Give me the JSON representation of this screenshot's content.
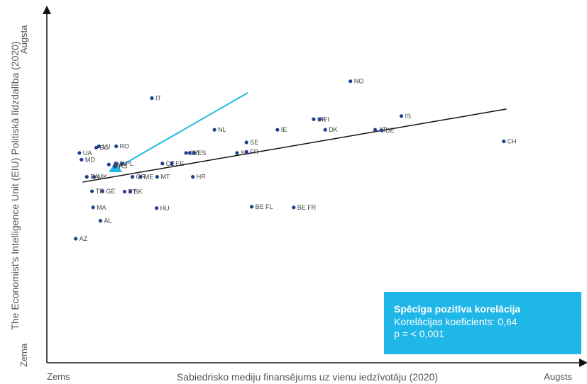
{
  "chart_data": {
    "type": "scatter",
    "title": "",
    "xlabel": "Sabiedrisko mediju finansējums uz vienu iedzīvotāju (2020)",
    "ylabel": "The Economist's Intelligence Unit (EIU) Politiskā līdzdalība (2020)",
    "x_tick_labels": [
      "Zems",
      "Augsts"
    ],
    "y_tick_labels": [
      "Zema",
      "Augsta"
    ],
    "xlim": [
      0,
      100
    ],
    "ylim": [
      0,
      100
    ],
    "grid": false,
    "point_color": "#1f3f93",
    "trend_color": "#111111",
    "arrow_color": "#22b8e6",
    "trendline": {
      "x1": 6.8,
      "y1": 51.4,
      "x2": 87.5,
      "y2": 72.2
    },
    "points": [
      {
        "label": "NO",
        "x": 57.8,
        "y": 80.1
      },
      {
        "label": "IS",
        "x": 67.5,
        "y": 70.2
      },
      {
        "label": "IE",
        "x": 43.9,
        "y": 66.3
      },
      {
        "label": "UK",
        "x": 50.8,
        "y": 69.3
      },
      {
        "label": "FI",
        "x": 52.0,
        "y": 69.3
      },
      {
        "label": "DK",
        "x": 53.0,
        "y": 66.3
      },
      {
        "label": "AT",
        "x": 62.5,
        "y": 66.3
      },
      {
        "label": "DE",
        "x": 63.8,
        "y": 66.1
      },
      {
        "label": "CH",
        "x": 87.0,
        "y": 63.0
      },
      {
        "label": "NL",
        "x": 31.9,
        "y": 66.3
      },
      {
        "label": "SE",
        "x": 38.0,
        "y": 62.7
      },
      {
        "label": "SI",
        "x": 36.2,
        "y": 59.7
      },
      {
        "label": "FR",
        "x": 38.0,
        "y": 60.0
      },
      {
        "label": "IT",
        "x": 20.0,
        "y": 75.3
      },
      {
        "label": "CY",
        "x": 26.5,
        "y": 59.7
      },
      {
        "label": "ES",
        "x": 28.0,
        "y": 59.7
      },
      {
        "label": "LT",
        "x": 27.2,
        "y": 59.7
      },
      {
        "label": "CZ",
        "x": 22.0,
        "y": 56.7
      },
      {
        "label": "EE",
        "x": 23.8,
        "y": 56.7
      },
      {
        "label": "MT",
        "x": 21.0,
        "y": 52.9
      },
      {
        "label": "HR",
        "x": 27.8,
        "y": 52.9
      },
      {
        "label": "BE FL",
        "x": 39.0,
        "y": 44.4
      },
      {
        "label": "BE FR",
        "x": 47.0,
        "y": 44.2
      },
      {
        "label": "HU",
        "x": 20.9,
        "y": 44.0
      },
      {
        "label": "SK",
        "x": 15.9,
        "y": 48.7
      },
      {
        "label": "ME",
        "x": 17.8,
        "y": 52.9
      },
      {
        "label": "LV",
        "x": 13.2,
        "y": 56.7
      },
      {
        "label": "PL",
        "x": 14.3,
        "y": 56.7
      },
      {
        "label": "RS",
        "x": 13.0,
        "y": 55.9
      },
      {
        "label": "GR",
        "x": 16.3,
        "y": 52.9
      },
      {
        "label": "PT",
        "x": 14.8,
        "y": 48.7
      },
      {
        "label": "AM",
        "x": 11.8,
        "y": 56.4
      },
      {
        "label": "MK",
        "x": 9.0,
        "y": 52.9
      },
      {
        "label": "BA",
        "x": 7.6,
        "y": 52.9
      },
      {
        "label": "GE",
        "x": 10.6,
        "y": 48.8
      },
      {
        "label": "TR",
        "x": 8.6,
        "y": 48.8
      },
      {
        "label": "MD",
        "x": 6.6,
        "y": 57.8
      },
      {
        "label": "LU",
        "x": 9.9,
        "y": 61.6
      },
      {
        "label": "BG",
        "x": 9.4,
        "y": 61.2
      },
      {
        "label": "RO",
        "x": 13.2,
        "y": 61.6
      },
      {
        "label": "UA",
        "x": 6.2,
        "y": 59.7
      },
      {
        "label": "MA",
        "x": 8.8,
        "y": 44.2
      },
      {
        "label": "AL",
        "x": 10.2,
        "y": 40.4
      },
      {
        "label": "AZ",
        "x": 5.5,
        "y": 35.3
      }
    ],
    "annotation": {
      "title": "Spēcīga pozitīva korelācija",
      "line1": "Korelācijas koeficients: 0,64",
      "line2": "p = < 0,001"
    }
  }
}
